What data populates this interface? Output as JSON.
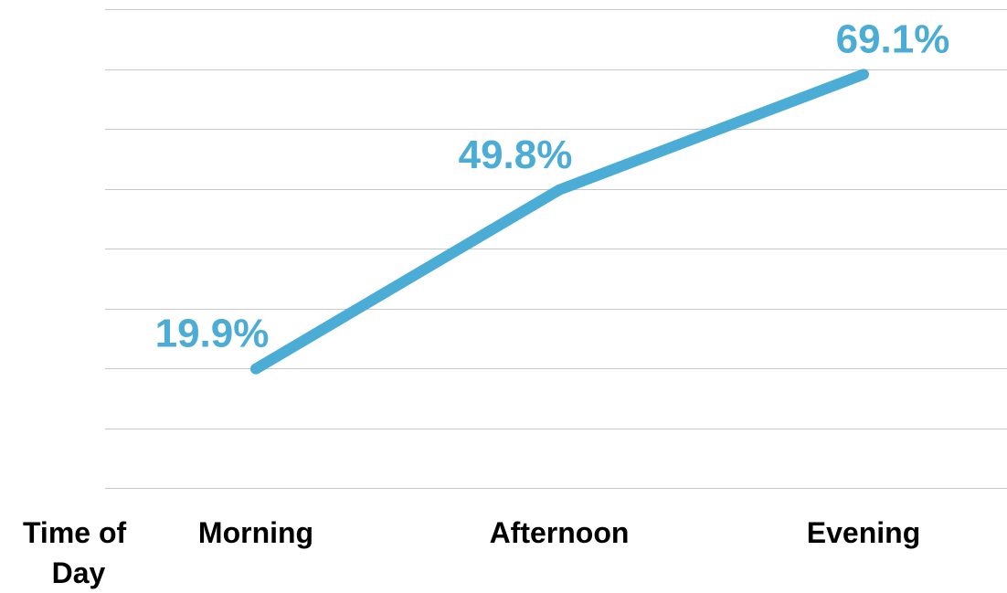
{
  "chart_data": {
    "type": "line",
    "xlabel": "Time of Day",
    "ylabel": "",
    "categories": [
      "Morning",
      "Afternoon",
      "Evening"
    ],
    "series": [
      {
        "values": [
          19.9,
          49.8,
          69.1
        ],
        "data_labels": [
          "19.9%",
          "49.8%",
          "69.1%"
        ],
        "color": "#4bacd6"
      }
    ],
    "ylim": [
      0,
      80
    ],
    "grid": true,
    "legend": "none"
  }
}
